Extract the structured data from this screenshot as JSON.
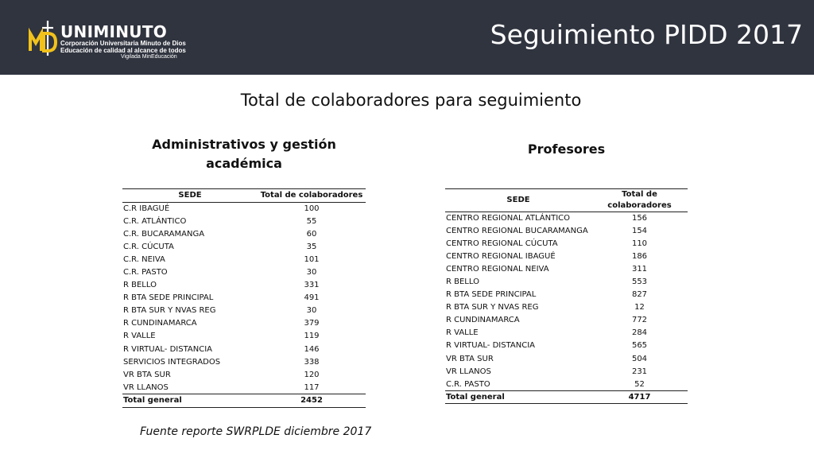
{
  "header": {
    "title": "Seguimiento PIDD 2017",
    "logo": {
      "icon": "md-logo-icon",
      "name": "UNIMINUTO",
      "line1": "Corporación Universitaria Minuto de Dios",
      "line2": "Educación de calidad al alcance de todos",
      "line3": "Vigilada MinEducación"
    }
  },
  "subtitle": "Total de colaboradores para seguimiento",
  "admin": {
    "title": "Administrativos y gestión académica",
    "headers": [
      "SEDE",
      "Total de colaboradores"
    ],
    "rows": [
      [
        "C.R IBAGUÉ",
        "100"
      ],
      [
        "C.R. ATLÁNTICO",
        "55"
      ],
      [
        "C.R. BUCARAMANGA",
        "60"
      ],
      [
        "C.R. CÚCUTA",
        "35"
      ],
      [
        "C.R. NEIVA",
        "101"
      ],
      [
        "C.R. PASTO",
        "30"
      ],
      [
        "R BELLO",
        "331"
      ],
      [
        "R BTA SEDE PRINCIPAL",
        "491"
      ],
      [
        "R BTA SUR Y NVAS REG",
        "30"
      ],
      [
        "R CUNDINAMARCA",
        "379"
      ],
      [
        "R VALLE",
        "119"
      ],
      [
        "R VIRTUAL- DISTANCIA",
        "146"
      ],
      [
        "SERVICIOS INTEGRADOS",
        "338"
      ],
      [
        "VR BTA SUR",
        "120"
      ],
      [
        "VR LLANOS",
        "117"
      ]
    ],
    "total": [
      "Total general",
      "2452"
    ]
  },
  "prof": {
    "title": "Profesores",
    "headers": [
      "SEDE",
      "Total de colaboradores"
    ],
    "rows": [
      [
        "CENTRO REGIONAL ATLÁNTICO",
        "156"
      ],
      [
        "CENTRO REGIONAL BUCARAMANGA",
        "154"
      ],
      [
        "CENTRO REGIONAL CÚCUTA",
        "110"
      ],
      [
        "CENTRO REGIONAL IBAGUÉ",
        "186"
      ],
      [
        "CENTRO REGIONAL NEIVA",
        "311"
      ],
      [
        "R BELLO",
        "553"
      ],
      [
        "R BTA SEDE PRINCIPAL",
        "827"
      ],
      [
        "R BTA SUR Y NVAS REG",
        "12"
      ],
      [
        "R CUNDINAMARCA",
        "772"
      ],
      [
        "R VALLE",
        "284"
      ],
      [
        "R VIRTUAL- DISTANCIA",
        "565"
      ],
      [
        "VR BTA SUR",
        "504"
      ],
      [
        "VR LLANOS",
        "231"
      ],
      [
        "C.R. PASTO",
        "52"
      ]
    ],
    "total": [
      "Total general",
      "4717"
    ]
  },
  "source": "Fuente reporte SWRPLDE diciembre 2017",
  "colors": {
    "header_bg": "#30343f",
    "logo_accent": "#f2c21b"
  }
}
